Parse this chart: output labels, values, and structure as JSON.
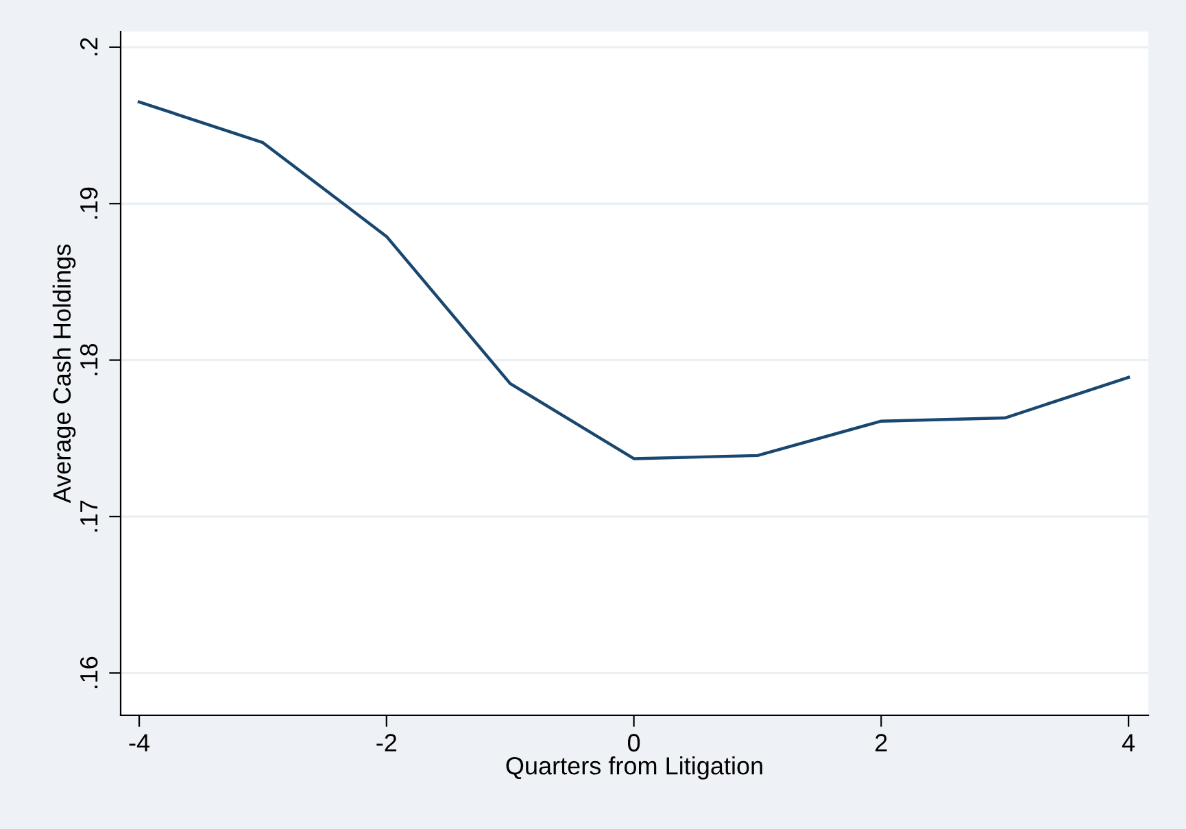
{
  "chart_data": {
    "type": "line",
    "xlabel": "Quarters from Litigation",
    "ylabel": "Average Cash Holdings",
    "x": [
      -4,
      -3,
      -2,
      -1,
      0,
      1,
      2,
      3,
      4
    ],
    "series": [
      {
        "color": "#1a476f",
        "values": [
          0.1965,
          0.1939,
          0.1879,
          0.1785,
          0.1737,
          0.1739,
          0.1761,
          0.1763,
          0.1789
        ]
      }
    ],
    "xlim": [
      -4.15,
      4.16
    ],
    "ylim": [
      0.1573,
      0.201
    ],
    "xticks": [
      -4,
      -2,
      0,
      2,
      4
    ],
    "yticks": [
      {
        "value": 0.16,
        "label": ".16"
      },
      {
        "value": 0.17,
        "label": ".17"
      },
      {
        "value": 0.18,
        "label": ".18"
      },
      {
        "value": 0.19,
        "label": ".19"
      },
      {
        "value": 0.2,
        "label": ".2"
      }
    ],
    "grid": "y",
    "legend": false,
    "marker": "none",
    "line_style": "solid"
  }
}
